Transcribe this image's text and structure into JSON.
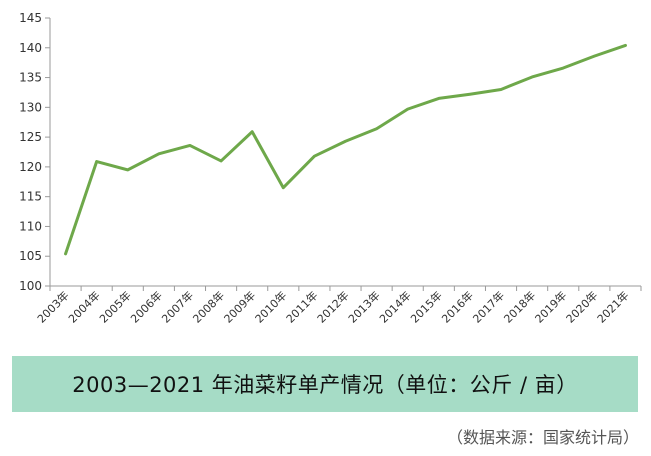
{
  "chart_data": {
    "type": "line",
    "categories": [
      "2003年",
      "2004年",
      "2005年",
      "2006年",
      "2007年",
      "2008年",
      "2009年",
      "2010年",
      "2011年",
      "2012年",
      "2013年",
      "2014年",
      "2015年",
      "2016年",
      "2017年",
      "2018年",
      "2019年",
      "2020年",
      "2021年"
    ],
    "series": [
      {
        "values": [
          105.4,
          120.9,
          119.5,
          122.2,
          123.6,
          121.0,
          125.9,
          116.5,
          121.8,
          124.3,
          126.4,
          129.7,
          131.5,
          132.2,
          133.0,
          135.1,
          136.6,
          138.6,
          140.4
        ]
      }
    ],
    "yticks": [
      100,
      105,
      110,
      115,
      120,
      125,
      130,
      135,
      140,
      145
    ],
    "ylim": [
      100,
      145
    ],
    "grid": false,
    "line_color": "#6ea84a",
    "axis_color": "#9a9a9a"
  },
  "title": "2003—2021 年油菜籽单产情况（单位：公斤 / 亩）",
  "source": "（数据来源：国家统计局）",
  "title_band_color": "#a6dcc6"
}
